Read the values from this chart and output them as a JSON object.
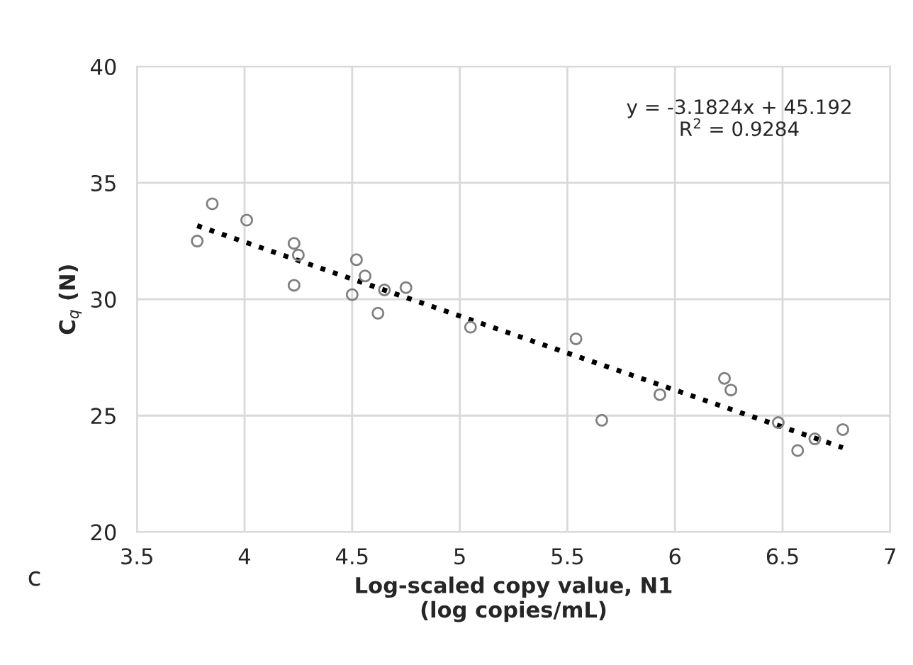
{
  "chart_data": {
    "type": "scatter",
    "xlabel": "Log-scaled copy value, N1\n(log copies/mL)",
    "ylabel": "C$_{q}$ (N)",
    "annotations": [
      "y = -3.1824x + 45.192\nR$^{2}$ = 0.9284",
      "c"
    ],
    "xlim": [
      3.5,
      7
    ],
    "xticks": [
      3.5,
      4,
      4.5,
      5,
      5.5,
      6,
      6.5,
      7
    ],
    "ylim": [
      20,
      40
    ],
    "yticks": [
      20,
      25,
      30,
      35,
      40
    ],
    "grid": true,
    "series": [
      {
        "color": "#7f7f7f",
        "marker": "circle",
        "x": [
          3.78,
          3.85,
          4.01,
          4.23,
          4.25,
          4.23,
          4.52,
          4.56,
          4.5,
          4.62,
          4.65,
          4.75,
          5.05,
          5.54,
          5.66,
          5.93,
          6.23,
          6.26,
          6.48,
          6.57,
          6.65,
          6.78
        ],
        "values": [
          32.5,
          34.1,
          33.4,
          32.4,
          31.9,
          30.6,
          31.7,
          31.0,
          30.2,
          29.4,
          30.4,
          30.5,
          28.8,
          28.3,
          24.8,
          25.9,
          26.6,
          26.1,
          24.7,
          23.5,
          24.0,
          24.4
        ]
      },
      {
        "type": "line",
        "color": "#000000",
        "line_style": "dotted",
        "marker": "none",
        "x": [
          3.78,
          6.78
        ],
        "values": [
          33.16,
          23.62
        ]
      }
    ]
  }
}
